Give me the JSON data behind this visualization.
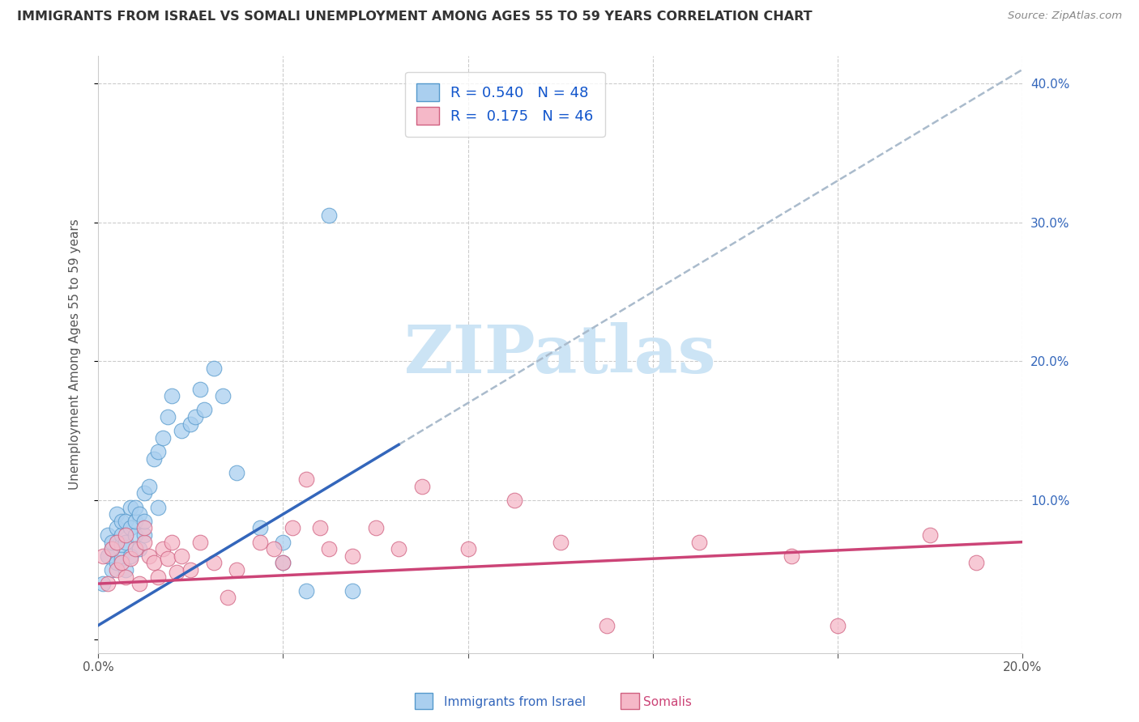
{
  "title": "IMMIGRANTS FROM ISRAEL VS SOMALI UNEMPLOYMENT AMONG AGES 55 TO 59 YEARS CORRELATION CHART",
  "source": "Source: ZipAtlas.com",
  "ylabel": "Unemployment Among Ages 55 to 59 years",
  "x_min": 0.0,
  "x_max": 0.2,
  "y_min": -0.01,
  "y_max": 0.42,
  "israel_color": "#aacfef",
  "israel_edge_color": "#5599cc",
  "somali_color": "#f5b8c8",
  "somali_edge_color": "#d06080",
  "israel_line_color": "#3366bb",
  "somali_line_color": "#cc4477",
  "dash_line_color": "#aabbcc",
  "background_color": "#ffffff",
  "watermark_text": "ZIPatlas",
  "watermark_color": "#cce4f5",
  "r_israel": 0.54,
  "n_israel": 48,
  "r_somali": 0.175,
  "n_somali": 46,
  "israel_scatter_x": [
    0.001,
    0.002,
    0.002,
    0.003,
    0.003,
    0.003,
    0.004,
    0.004,
    0.004,
    0.005,
    0.005,
    0.005,
    0.005,
    0.006,
    0.006,
    0.006,
    0.007,
    0.007,
    0.007,
    0.008,
    0.008,
    0.008,
    0.009,
    0.009,
    0.01,
    0.01,
    0.01,
    0.011,
    0.012,
    0.013,
    0.013,
    0.014,
    0.015,
    0.016,
    0.018,
    0.02,
    0.021,
    0.022,
    0.023,
    0.025,
    0.027,
    0.03,
    0.035,
    0.04,
    0.04,
    0.045,
    0.05,
    0.055
  ],
  "israel_scatter_y": [
    0.04,
    0.06,
    0.075,
    0.05,
    0.065,
    0.07,
    0.055,
    0.08,
    0.09,
    0.058,
    0.068,
    0.075,
    0.085,
    0.05,
    0.07,
    0.085,
    0.06,
    0.08,
    0.095,
    0.075,
    0.085,
    0.095,
    0.065,
    0.09,
    0.075,
    0.085,
    0.105,
    0.11,
    0.13,
    0.095,
    0.135,
    0.145,
    0.16,
    0.175,
    0.15,
    0.155,
    0.16,
    0.18,
    0.165,
    0.195,
    0.175,
    0.12,
    0.08,
    0.07,
    0.055,
    0.035,
    0.305,
    0.035
  ],
  "somali_scatter_x": [
    0.001,
    0.002,
    0.003,
    0.004,
    0.004,
    0.005,
    0.006,
    0.006,
    0.007,
    0.008,
    0.009,
    0.01,
    0.01,
    0.011,
    0.012,
    0.013,
    0.014,
    0.015,
    0.016,
    0.017,
    0.018,
    0.02,
    0.022,
    0.025,
    0.028,
    0.03,
    0.035,
    0.038,
    0.04,
    0.042,
    0.045,
    0.048,
    0.05,
    0.055,
    0.06,
    0.065,
    0.07,
    0.08,
    0.09,
    0.1,
    0.11,
    0.13,
    0.15,
    0.16,
    0.18,
    0.19
  ],
  "somali_scatter_y": [
    0.06,
    0.04,
    0.065,
    0.05,
    0.07,
    0.055,
    0.045,
    0.075,
    0.058,
    0.065,
    0.04,
    0.07,
    0.08,
    0.06,
    0.055,
    0.045,
    0.065,
    0.058,
    0.07,
    0.048,
    0.06,
    0.05,
    0.07,
    0.055,
    0.03,
    0.05,
    0.07,
    0.065,
    0.055,
    0.08,
    0.115,
    0.08,
    0.065,
    0.06,
    0.08,
    0.065,
    0.11,
    0.065,
    0.1,
    0.07,
    0.01,
    0.07,
    0.06,
    0.01,
    0.075,
    0.055
  ],
  "israel_line_start_x": 0.0,
  "israel_line_start_y": 0.01,
  "israel_line_slope": 2.0,
  "somali_line_start_y": 0.04,
  "somali_line_slope": 0.15
}
